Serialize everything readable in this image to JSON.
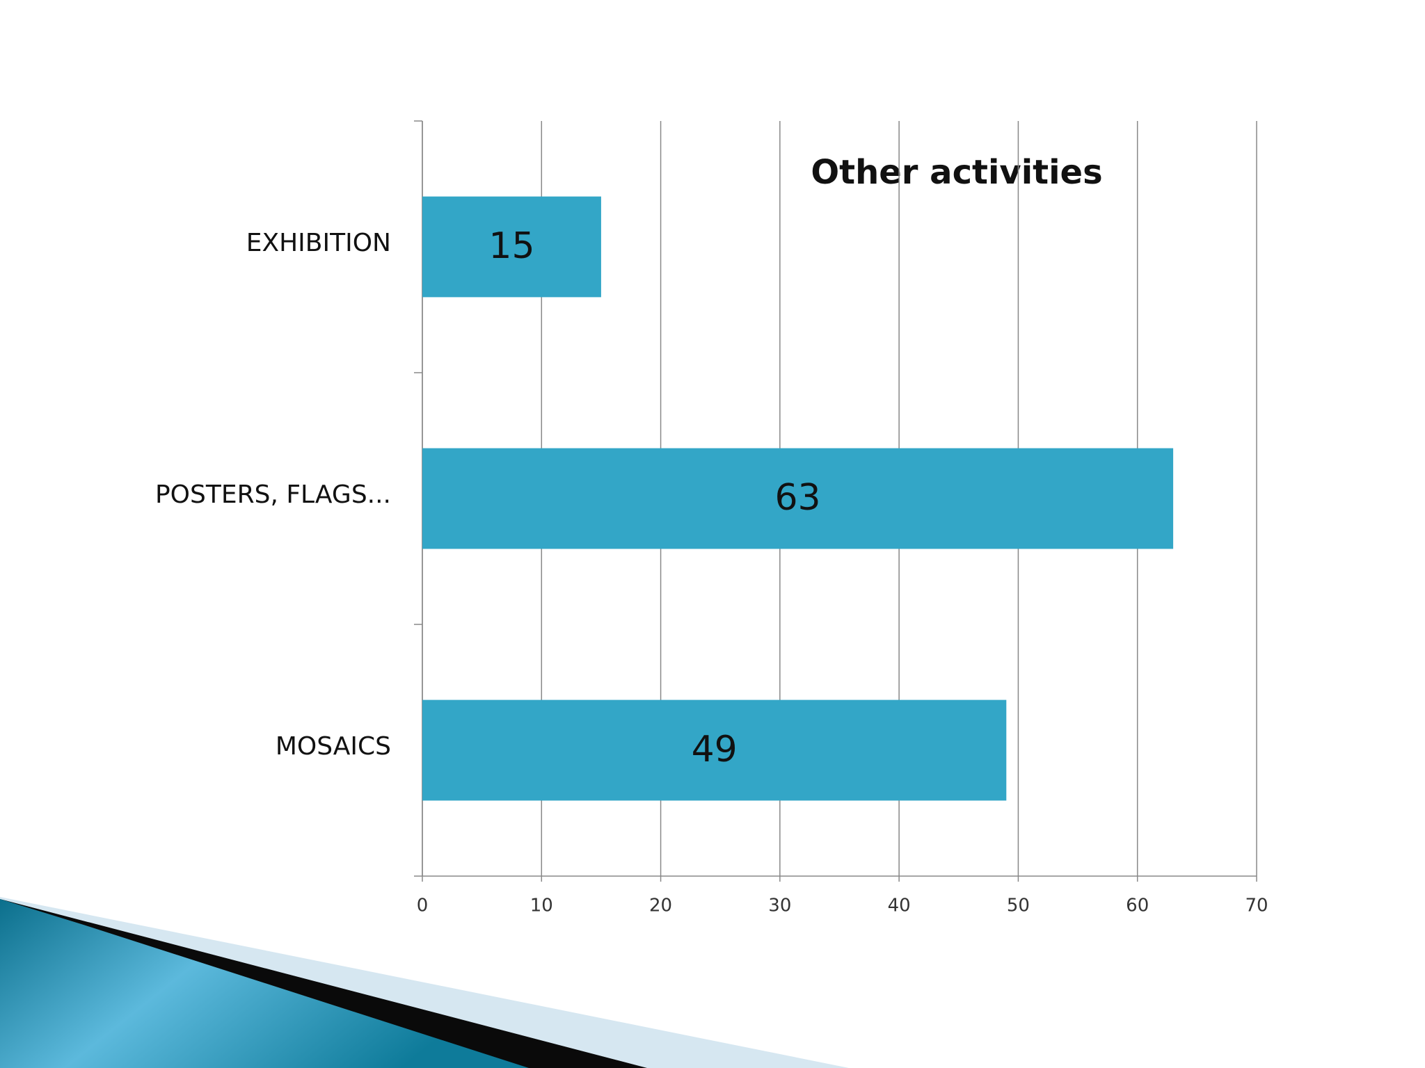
{
  "chart_data": {
    "type": "bar",
    "orientation": "horizontal",
    "title": "Other activities",
    "title_color": "#e0161e",
    "categories": [
      "EXHIBITION",
      "POSTERS, FLAGS...",
      "MOSAICS"
    ],
    "values": [
      15,
      63,
      49
    ],
    "color": "#33a6c7",
    "xlim": [
      0,
      70
    ],
    "xticks": [
      0,
      10,
      20,
      30,
      40,
      50,
      60,
      70
    ],
    "grid": true
  }
}
